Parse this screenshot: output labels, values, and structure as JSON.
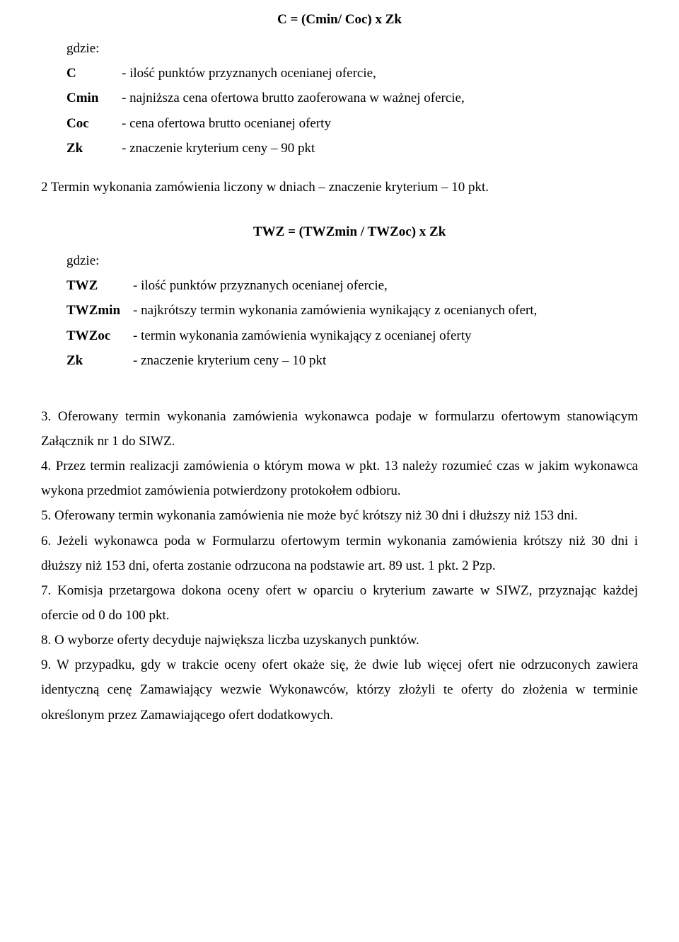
{
  "formula1": "C = (Cmin/ Coc) x Zk",
  "where": "gdzie:",
  "defs1": {
    "c": {
      "term": "C",
      "desc": "- ilość punktów  przyznanych ocenianej ofercie,"
    },
    "cmin": {
      "term": "Cmin",
      "desc": "- najniższa cena ofertowa brutto zaoferowana w ważnej ofercie,"
    },
    "coc": {
      "term": "Coc",
      "desc": "- cena ofertowa brutto ocenianej oferty"
    },
    "zk": {
      "term": "Zk",
      "desc": "- znaczenie kryterium ceny – 90 pkt"
    }
  },
  "line2": "2 Termin wykonania zamówienia liczony w dniach – znaczenie kryterium  – 10 pkt.",
  "formula2": "TWZ = (TWZmin / TWZoc) x Zk",
  "defs2": {
    "twz": {
      "term": "TWZ",
      "desc": "- ilość punktów  przyznanych ocenianej ofercie,"
    },
    "twzmin": {
      "term": "TWZmin",
      "desc": "- najkrótszy termin wykonania zamówienia wynikający z ocenianych ofert,"
    },
    "twzoc": {
      "term": "TWZoc",
      "desc": "- termin wykonania zamówienia wynikający z ocenianej oferty"
    },
    "zk": {
      "term": "Zk",
      "desc": "- znaczenie kryterium ceny – 10 pkt"
    }
  },
  "p3": "3. Oferowany termin wykonania zamówienia wykonawca podaje w formularzu ofertowym stanowiącym Załącznik nr 1 do SIWZ.",
  "p4": "4. Przez termin realizacji zamówienia o którym mowa w pkt. 13 należy rozumieć czas w jakim wykonawca wykona przedmiot zamówienia potwierdzony protokołem odbioru.",
  "p5": "5. Oferowany termin wykonania zamówienia nie może być krótszy niż 30 dni i dłuższy niż 153 dni.",
  "p6": "6. Jeżeli wykonawca poda w Formularzu ofertowym termin wykonania zamówienia krótszy niż 30 dni i dłuższy niż 153 dni, oferta zostanie odrzucona na podstawie art. 89 ust. 1 pkt. 2 Pzp.",
  "p7": "7. Komisja przetargowa dokona oceny ofert w oparciu o kryterium zawarte w SIWZ, przyznając każdej ofercie od 0 do 100 pkt.",
  "p8": "8. O wyborze oferty decyduje największa liczba uzyskanych punktów.",
  "p9": "9. W przypadku, gdy w trakcie oceny ofert okaże się, że dwie lub więcej ofert nie odrzuconych zawiera identyczną cenę Zamawiający wezwie Wykonawców, którzy złożyli te oferty do złożenia w terminie określonym przez Zamawiającego ofert dodatkowych."
}
